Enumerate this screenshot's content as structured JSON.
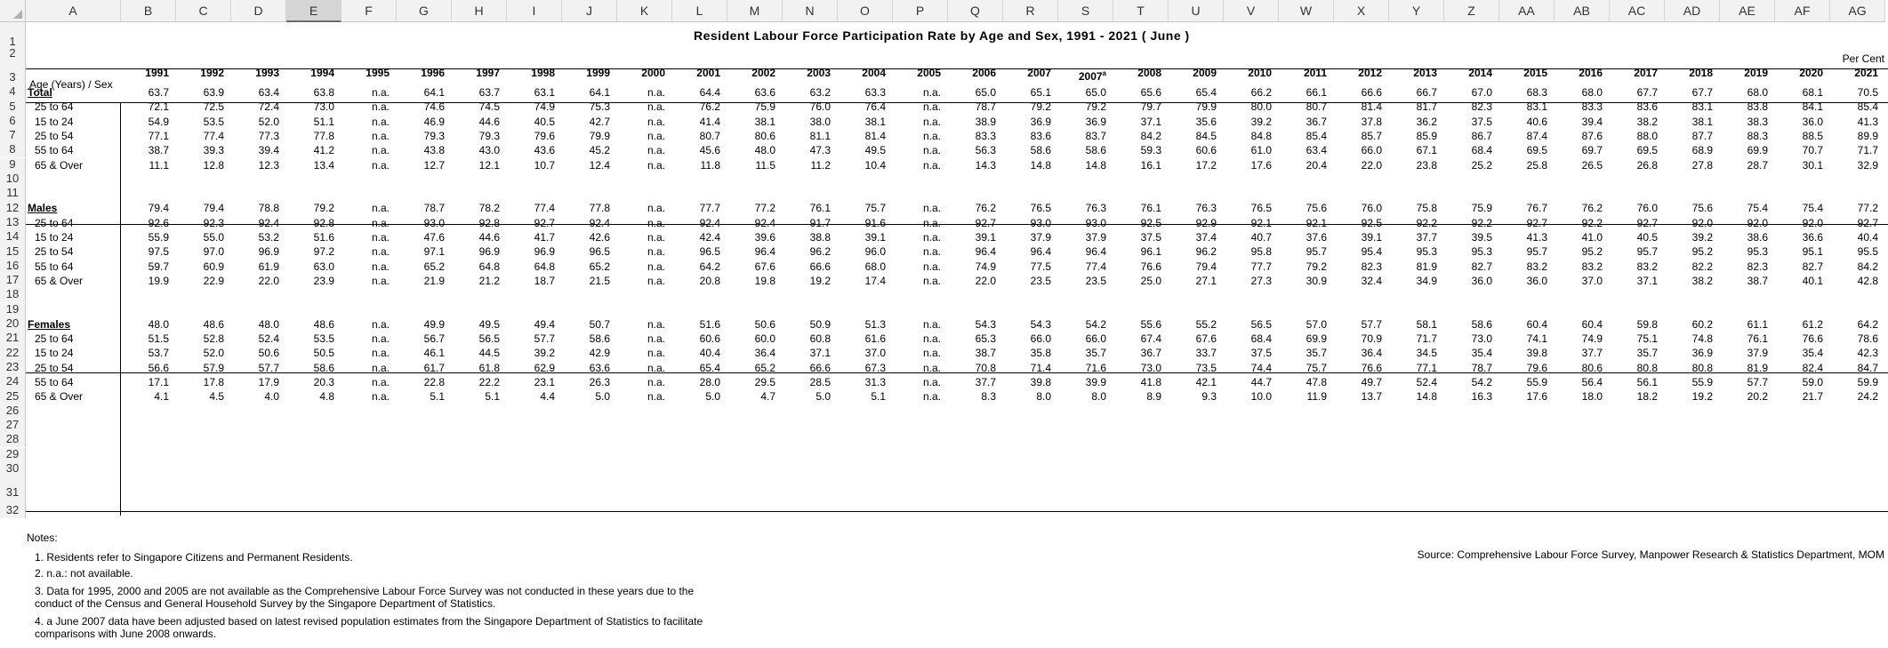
{
  "columns": [
    "A",
    "B",
    "C",
    "D",
    "E",
    "F",
    "G",
    "H",
    "I",
    "J",
    "K",
    "L",
    "M",
    "N",
    "O",
    "P",
    "Q",
    "R",
    "S",
    "T",
    "U",
    "V",
    "W",
    "X",
    "Y",
    "Z",
    "AA",
    "AB",
    "AC",
    "AD",
    "AE",
    "AF",
    "AG"
  ],
  "active_column": "E",
  "rows": [
    "1",
    "2",
    "3",
    "4",
    "5",
    "6",
    "7",
    "8",
    "9",
    "10",
    "11",
    "12",
    "13",
    "14",
    "15",
    "16",
    "17",
    "18",
    "19",
    "20",
    "21",
    "22",
    "23",
    "24",
    "25",
    "26",
    "27",
    "28",
    "29",
    "30",
    "31",
    "32"
  ],
  "title": "Resident  Labour  Force  Participation  Rate by  Age  and  Sex, 1991 - 2021  ( June )",
  "unit": "Per Cent",
  "row_header_label": "Age (Years) / Sex",
  "years": [
    "1991",
    "1992",
    "1993",
    "1994",
    "1995",
    "1996",
    "1997",
    "1998",
    "1999",
    "2000",
    "2001",
    "2002",
    "2003",
    "2004",
    "2005",
    "2006",
    "2007",
    "2007",
    "2008",
    "2009",
    "2010",
    "2011",
    "2012",
    "2013",
    "2014",
    "2015",
    "2016",
    "2017",
    "2018",
    "2019",
    "2020",
    "2021"
  ],
  "footnote_mark": "a",
  "groups": [
    {
      "label": "Total",
      "rows": [
        {
          "label": "Total",
          "values": [
            "63.7",
            "63.9",
            "63.4",
            "63.8",
            "n.a.",
            "64.1",
            "63.7",
            "63.1",
            "64.1",
            "n.a.",
            "64.4",
            "63.6",
            "63.2",
            "63.3",
            "n.a.",
            "65.0",
            "65.1",
            "65.0",
            "65.6",
            "65.4",
            "66.2",
            "66.1",
            "66.6",
            "66.7",
            "67.0",
            "68.3",
            "68.0",
            "67.7",
            "67.7",
            "68.0",
            "68.1",
            "70.5"
          ]
        },
        {
          "label": "25 to 64",
          "values": [
            "72.1",
            "72.5",
            "72.4",
            "73.0",
            "n.a.",
            "74.6",
            "74.5",
            "74.9",
            "75.3",
            "n.a.",
            "76.2",
            "75.9",
            "76.0",
            "76.4",
            "n.a.",
            "78.7",
            "79.2",
            "79.2",
            "79.7",
            "79.9",
            "80.0",
            "80.7",
            "81.4",
            "81.7",
            "82.3",
            "83.1",
            "83.3",
            "83.6",
            "83.1",
            "83.8",
            "84.1",
            "85.4"
          ]
        },
        {
          "label": "15 to 24",
          "values": [
            "54.9",
            "53.5",
            "52.0",
            "51.1",
            "n.a.",
            "46.9",
            "44.6",
            "40.5",
            "42.7",
            "n.a.",
            "41.4",
            "38.1",
            "38.0",
            "38.1",
            "n.a.",
            "38.9",
            "36.9",
            "36.9",
            "37.1",
            "35.6",
            "39.2",
            "36.7",
            "37.8",
            "36.2",
            "37.5",
            "40.6",
            "39.4",
            "38.2",
            "38.1",
            "38.3",
            "36.0",
            "41.3"
          ]
        },
        {
          "label": "25 to 54",
          "values": [
            "77.1",
            "77.4",
            "77.3",
            "77.8",
            "n.a.",
            "79.3",
            "79.3",
            "79.6",
            "79.9",
            "n.a.",
            "80.7",
            "80.6",
            "81.1",
            "81.4",
            "n.a.",
            "83.3",
            "83.6",
            "83.7",
            "84.2",
            "84.5",
            "84.8",
            "85.4",
            "85.7",
            "85.9",
            "86.7",
            "87.4",
            "87.6",
            "88.0",
            "87.7",
            "88.3",
            "88.5",
            "89.9"
          ]
        },
        {
          "label": "55 to 64",
          "values": [
            "38.7",
            "39.3",
            "39.4",
            "41.2",
            "n.a.",
            "43.8",
            "43.0",
            "43.6",
            "45.2",
            "n.a.",
            "45.6",
            "48.0",
            "47.3",
            "49.5",
            "n.a.",
            "56.3",
            "58.6",
            "58.6",
            "59.3",
            "60.6",
            "61.0",
            "63.4",
            "66.0",
            "67.1",
            "68.4",
            "69.5",
            "69.7",
            "69.5",
            "68.9",
            "69.9",
            "70.7",
            "71.7"
          ]
        },
        {
          "label": "65 & Over",
          "values": [
            "11.1",
            "12.8",
            "12.3",
            "13.4",
            "n.a.",
            "12.7",
            "12.1",
            "10.7",
            "12.4",
            "n.a.",
            "11.8",
            "11.5",
            "11.2",
            "10.4",
            "n.a.",
            "14.3",
            "14.8",
            "14.8",
            "16.1",
            "17.2",
            "17.6",
            "20.4",
            "22.0",
            "23.8",
            "25.2",
            "25.8",
            "26.5",
            "26.8",
            "27.8",
            "28.7",
            "30.1",
            "32.9"
          ]
        }
      ]
    },
    {
      "label": "Males",
      "rows": [
        {
          "label": "Males",
          "values": [
            "79.4",
            "79.4",
            "78.8",
            "79.2",
            "n.a.",
            "78.7",
            "78.2",
            "77.4",
            "77.8",
            "n.a.",
            "77.7",
            "77.2",
            "76.1",
            "75.7",
            "n.a.",
            "76.2",
            "76.5",
            "76.3",
            "76.1",
            "76.3",
            "76.5",
            "75.6",
            "76.0",
            "75.8",
            "75.9",
            "76.7",
            "76.2",
            "76.0",
            "75.6",
            "75.4",
            "75.4",
            "77.2"
          ]
        },
        {
          "label": "25 to 64",
          "values": [
            "92.6",
            "92.3",
            "92.4",
            "92.8",
            "n.a.",
            "93.0",
            "92.8",
            "92.7",
            "92.4",
            "n.a.",
            "92.4",
            "92.4",
            "91.7",
            "91.6",
            "n.a.",
            "92.7",
            "93.0",
            "93.0",
            "92.5",
            "92.9",
            "92.1",
            "92.1",
            "92.5",
            "92.2",
            "92.2",
            "92.7",
            "92.2",
            "92.7",
            "92.0",
            "92.0",
            "92.0",
            "92.7"
          ]
        },
        {
          "label": "15 to 24",
          "values": [
            "55.9",
            "55.0",
            "53.2",
            "51.6",
            "n.a.",
            "47.6",
            "44.6",
            "41.7",
            "42.6",
            "n.a.",
            "42.4",
            "39.6",
            "38.8",
            "39.1",
            "n.a.",
            "39.1",
            "37.9",
            "37.9",
            "37.5",
            "37.4",
            "40.7",
            "37.6",
            "39.1",
            "37.7",
            "39.5",
            "41.3",
            "41.0",
            "40.5",
            "39.2",
            "38.6",
            "36.6",
            "40.4"
          ]
        },
        {
          "label": "25 to 54",
          "values": [
            "97.5",
            "97.0",
            "96.9",
            "97.2",
            "n.a.",
            "97.1",
            "96.9",
            "96.9",
            "96.5",
            "n.a.",
            "96.5",
            "96.4",
            "96.2",
            "96.0",
            "n.a.",
            "96.4",
            "96.4",
            "96.4",
            "96.1",
            "96.2",
            "95.8",
            "95.7",
            "95.4",
            "95.3",
            "95.3",
            "95.7",
            "95.2",
            "95.7",
            "95.2",
            "95.3",
            "95.1",
            "95.5"
          ]
        },
        {
          "label": "55 to 64",
          "values": [
            "59.7",
            "60.9",
            "61.9",
            "63.0",
            "n.a.",
            "65.2",
            "64.8",
            "64.8",
            "65.2",
            "n.a.",
            "64.2",
            "67.6",
            "66.6",
            "68.0",
            "n.a.",
            "74.9",
            "77.5",
            "77.4",
            "76.6",
            "79.4",
            "77.7",
            "79.2",
            "82.3",
            "81.9",
            "82.7",
            "83.2",
            "83.2",
            "83.2",
            "82.2",
            "82.3",
            "82.7",
            "84.2"
          ]
        },
        {
          "label": "65 & Over",
          "values": [
            "19.9",
            "22.9",
            "22.0",
            "23.9",
            "n.a.",
            "21.9",
            "21.2",
            "18.7",
            "21.5",
            "n.a.",
            "20.8",
            "19.8",
            "19.2",
            "17.4",
            "n.a.",
            "22.0",
            "23.5",
            "23.5",
            "25.0",
            "27.1",
            "27.3",
            "30.9",
            "32.4",
            "34.9",
            "36.0",
            "36.0",
            "37.0",
            "37.1",
            "38.2",
            "38.7",
            "40.1",
            "42.8"
          ]
        }
      ]
    },
    {
      "label": "Females",
      "rows": [
        {
          "label": "Females",
          "values": [
            "48.0",
            "48.6",
            "48.0",
            "48.6",
            "n.a.",
            "49.9",
            "49.5",
            "49.4",
            "50.7",
            "n.a.",
            "51.6",
            "50.6",
            "50.9",
            "51.3",
            "n.a.",
            "54.3",
            "54.3",
            "54.2",
            "55.6",
            "55.2",
            "56.5",
            "57.0",
            "57.7",
            "58.1",
            "58.6",
            "60.4",
            "60.4",
            "59.8",
            "60.2",
            "61.1",
            "61.2",
            "64.2"
          ]
        },
        {
          "label": "25 to 64",
          "values": [
            "51.5",
            "52.8",
            "52.4",
            "53.5",
            "n.a.",
            "56.7",
            "56.5",
            "57.7",
            "58.6",
            "n.a.",
            "60.6",
            "60.0",
            "60.8",
            "61.6",
            "n.a.",
            "65.3",
            "66.0",
            "66.0",
            "67.4",
            "67.6",
            "68.4",
            "69.9",
            "70.9",
            "71.7",
            "73.0",
            "74.1",
            "74.9",
            "75.1",
            "74.8",
            "76.1",
            "76.6",
            "78.6"
          ]
        },
        {
          "label": "15 to 24",
          "values": [
            "53.7",
            "52.0",
            "50.6",
            "50.5",
            "n.a.",
            "46.1",
            "44.5",
            "39.2",
            "42.9",
            "n.a.",
            "40.4",
            "36.4",
            "37.1",
            "37.0",
            "n.a.",
            "38.7",
            "35.8",
            "35.7",
            "36.7",
            "33.7",
            "37.5",
            "35.7",
            "36.4",
            "34.5",
            "35.4",
            "39.8",
            "37.7",
            "35.7",
            "36.9",
            "37.9",
            "35.4",
            "42.3"
          ]
        },
        {
          "label": "25 to 54",
          "values": [
            "56.6",
            "57.9",
            "57.7",
            "58.6",
            "n.a.",
            "61.7",
            "61.8",
            "62.9",
            "63.6",
            "n.a.",
            "65.4",
            "65.2",
            "66.6",
            "67.3",
            "n.a.",
            "70.8",
            "71.4",
            "71.6",
            "73.0",
            "73.5",
            "74.4",
            "75.7",
            "76.6",
            "77.1",
            "78.7",
            "79.6",
            "80.6",
            "80.8",
            "80.8",
            "81.9",
            "82.4",
            "84.7"
          ]
        },
        {
          "label": "55 to 64",
          "values": [
            "17.1",
            "17.8",
            "17.9",
            "20.3",
            "n.a.",
            "22.8",
            "22.2",
            "23.1",
            "26.3",
            "n.a.",
            "28.0",
            "29.5",
            "28.5",
            "31.3",
            "n.a.",
            "37.7",
            "39.8",
            "39.9",
            "41.8",
            "42.1",
            "44.7",
            "47.8",
            "49.7",
            "52.4",
            "54.2",
            "55.9",
            "56.4",
            "56.1",
            "55.9",
            "57.7",
            "59.0",
            "59.9"
          ]
        },
        {
          "label": "65 & Over",
          "values": [
            "4.1",
            "4.5",
            "4.0",
            "4.8",
            "n.a.",
            "5.1",
            "5.1",
            "4.4",
            "5.0",
            "n.a.",
            "5.0",
            "4.7",
            "5.0",
            "5.1",
            "n.a.",
            "8.3",
            "8.0",
            "8.0",
            "8.9",
            "9.3",
            "10.0",
            "11.9",
            "13.7",
            "14.8",
            "16.3",
            "17.6",
            "18.0",
            "18.2",
            "19.2",
            "20.2",
            "21.7",
            "24.2"
          ]
        }
      ]
    }
  ],
  "source": "Source: Comprehensive Labour Force Survey, Manpower Research & Statistics Department, MOM",
  "notes_title": "Notes:",
  "notes": [
    "1. Residents refer to Singapore Citizens and Permanent Residents.",
    "2. n.a.: not available.",
    "3. Data for 1995, 2000 and 2005 are not available as the Comprehensive Labour Force Survey was not conducted in these years due to the",
    "conduct of the Census and General Household Survey by the Singapore Department of Statistics.",
    "4. a June 2007 data have been adjusted based on latest revised population estimates from the Singapore Department of Statistics to facilitate",
    "comparisons with June 2008 onwards."
  ]
}
